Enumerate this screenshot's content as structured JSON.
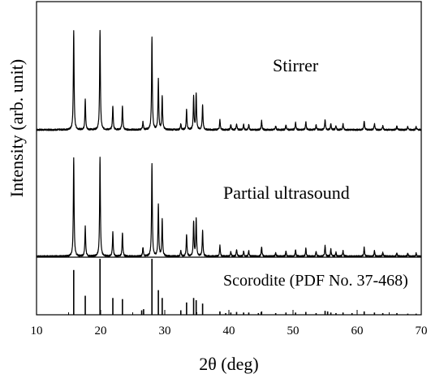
{
  "chart_data": {
    "type": "line",
    "xlabel": "2θ (deg)",
    "ylabel": "Intensity (arb. unit)",
    "xlim": [
      10,
      70
    ],
    "x_ticks": [
      "10",
      "20",
      "30",
      "40",
      "50",
      "60",
      "70"
    ],
    "series": [
      {
        "name": "Stirrer",
        "peaks": [
          {
            "x": 15.8,
            "y": 100
          },
          {
            "x": 17.6,
            "y": 30
          },
          {
            "x": 19.9,
            "y": 100
          },
          {
            "x": 21.9,
            "y": 24
          },
          {
            "x": 23.4,
            "y": 24
          },
          {
            "x": 26.6,
            "y": 8
          },
          {
            "x": 28.0,
            "y": 92
          },
          {
            "x": 29.0,
            "y": 50
          },
          {
            "x": 29.6,
            "y": 34
          },
          {
            "x": 32.5,
            "y": 6
          },
          {
            "x": 33.4,
            "y": 20
          },
          {
            "x": 34.5,
            "y": 33
          },
          {
            "x": 34.9,
            "y": 36
          },
          {
            "x": 35.9,
            "y": 25
          },
          {
            "x": 38.6,
            "y": 10
          },
          {
            "x": 40.3,
            "y": 5
          },
          {
            "x": 41.2,
            "y": 6
          },
          {
            "x": 42.3,
            "y": 5
          },
          {
            "x": 43.1,
            "y": 5
          },
          {
            "x": 45.1,
            "y": 9
          },
          {
            "x": 47.3,
            "y": 4
          },
          {
            "x": 48.9,
            "y": 5
          },
          {
            "x": 50.4,
            "y": 7
          },
          {
            "x": 52.0,
            "y": 8
          },
          {
            "x": 53.6,
            "y": 5
          },
          {
            "x": 55.0,
            "y": 10
          },
          {
            "x": 55.9,
            "y": 6
          },
          {
            "x": 56.7,
            "y": 4
          },
          {
            "x": 57.8,
            "y": 6
          },
          {
            "x": 61.1,
            "y": 9
          },
          {
            "x": 62.7,
            "y": 6
          },
          {
            "x": 64.0,
            "y": 4
          },
          {
            "x": 66.2,
            "y": 4
          },
          {
            "x": 67.9,
            "y": 3
          },
          {
            "x": 69.2,
            "y": 3
          }
        ]
      },
      {
        "name": "Partial ultrasound",
        "peaks": [
          {
            "x": 15.8,
            "y": 100
          },
          {
            "x": 17.6,
            "y": 30
          },
          {
            "x": 19.9,
            "y": 100
          },
          {
            "x": 21.9,
            "y": 24
          },
          {
            "x": 23.4,
            "y": 24
          },
          {
            "x": 26.6,
            "y": 9
          },
          {
            "x": 28.0,
            "y": 93
          },
          {
            "x": 29.0,
            "y": 52
          },
          {
            "x": 29.6,
            "y": 37
          },
          {
            "x": 32.5,
            "y": 6
          },
          {
            "x": 33.4,
            "y": 22
          },
          {
            "x": 34.5,
            "y": 35
          },
          {
            "x": 34.9,
            "y": 38
          },
          {
            "x": 35.9,
            "y": 26
          },
          {
            "x": 38.6,
            "y": 11
          },
          {
            "x": 40.3,
            "y": 5
          },
          {
            "x": 41.2,
            "y": 7
          },
          {
            "x": 42.3,
            "y": 5
          },
          {
            "x": 43.1,
            "y": 6
          },
          {
            "x": 45.1,
            "y": 10
          },
          {
            "x": 47.3,
            "y": 4
          },
          {
            "x": 48.9,
            "y": 5
          },
          {
            "x": 50.4,
            "y": 7
          },
          {
            "x": 52.0,
            "y": 8
          },
          {
            "x": 53.6,
            "y": 5
          },
          {
            "x": 55.0,
            "y": 11
          },
          {
            "x": 55.9,
            "y": 7
          },
          {
            "x": 56.7,
            "y": 4
          },
          {
            "x": 57.8,
            "y": 6
          },
          {
            "x": 61.1,
            "y": 9
          },
          {
            "x": 62.7,
            "y": 6
          },
          {
            "x": 64.0,
            "y": 4
          },
          {
            "x": 66.2,
            "y": 4
          },
          {
            "x": 67.9,
            "y": 3
          },
          {
            "x": 69.2,
            "y": 3
          }
        ]
      }
    ],
    "reference": {
      "name": "Scorodite (PDF No. 37-468)",
      "type": "stick",
      "lines": [
        {
          "x": 15.8,
          "y": 80
        },
        {
          "x": 17.6,
          "y": 34
        },
        {
          "x": 19.9,
          "y": 100
        },
        {
          "x": 21.9,
          "y": 30
        },
        {
          "x": 23.4,
          "y": 28
        },
        {
          "x": 26.4,
          "y": 8
        },
        {
          "x": 26.7,
          "y": 10
        },
        {
          "x": 28.0,
          "y": 100
        },
        {
          "x": 29.0,
          "y": 44
        },
        {
          "x": 29.6,
          "y": 30
        },
        {
          "x": 32.5,
          "y": 8
        },
        {
          "x": 33.4,
          "y": 22
        },
        {
          "x": 34.5,
          "y": 30
        },
        {
          "x": 34.9,
          "y": 26
        },
        {
          "x": 35.9,
          "y": 20
        },
        {
          "x": 38.6,
          "y": 6
        },
        {
          "x": 39.5,
          "y": 3
        },
        {
          "x": 40.3,
          "y": 4
        },
        {
          "x": 41.2,
          "y": 5
        },
        {
          "x": 42.3,
          "y": 4
        },
        {
          "x": 43.1,
          "y": 4
        },
        {
          "x": 44.6,
          "y": 3
        },
        {
          "x": 45.1,
          "y": 6
        },
        {
          "x": 47.3,
          "y": 3
        },
        {
          "x": 48.9,
          "y": 4
        },
        {
          "x": 50.4,
          "y": 4
        },
        {
          "x": 52.0,
          "y": 5
        },
        {
          "x": 53.6,
          "y": 3
        },
        {
          "x": 55.0,
          "y": 7
        },
        {
          "x": 55.4,
          "y": 6
        },
        {
          "x": 55.9,
          "y": 4
        },
        {
          "x": 56.7,
          "y": 3
        },
        {
          "x": 57.8,
          "y": 4
        },
        {
          "x": 59.2,
          "y": 3
        },
        {
          "x": 61.1,
          "y": 6
        },
        {
          "x": 62.7,
          "y": 4
        },
        {
          "x": 64.0,
          "y": 3
        },
        {
          "x": 66.2,
          "y": 3
        },
        {
          "x": 67.9,
          "y": 2
        },
        {
          "x": 69.2,
          "y": 2
        }
      ]
    }
  }
}
